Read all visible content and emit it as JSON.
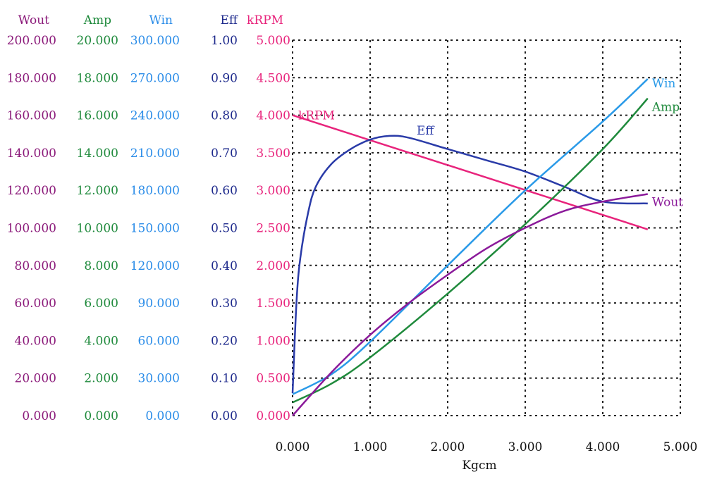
{
  "chart_data": {
    "type": "line",
    "xlabel": "Kgcm",
    "xlim": [
      0,
      5
    ],
    "x_ticks": [
      "0.000",
      "1.000",
      "2.000",
      "3.000",
      "4.000",
      "5.000"
    ],
    "grid": true,
    "y_axes": [
      {
        "name": "Wout",
        "color": "#8b1a7a",
        "ticks": [
          "0.000",
          "20.000",
          "40.000",
          "60.000",
          "80.000",
          "100.000",
          "120.000",
          "140.000",
          "160.000",
          "180.000",
          "200.000"
        ]
      },
      {
        "name": "Amp",
        "color": "#1f8a3c",
        "ticks": [
          "0.000",
          "2.000",
          "4.000",
          "6.000",
          "8.000",
          "10.000",
          "12.000",
          "14.000",
          "16.000",
          "18.000",
          "20.000"
        ]
      },
      {
        "name": "Win",
        "color": "#2a8ce8",
        "ticks": [
          "0.000",
          "30.000",
          "60.000",
          "90.000",
          "120.000",
          "150.000",
          "180.000",
          "210.000",
          "240.000",
          "270.000",
          "300.000"
        ]
      },
      {
        "name": "Eff",
        "color": "#1e2a8c",
        "ticks": [
          "0.00",
          "0.10",
          "0.20",
          "0.30",
          "0.40",
          "0.50",
          "0.60",
          "0.70",
          "0.80",
          "0.90",
          "1.00"
        ]
      },
      {
        "name": "kRPM",
        "color": "#e8247c",
        "ticks": [
          "0.000",
          "0.500",
          "1.000",
          "1.500",
          "2.000",
          "2.500",
          "3.000",
          "3.500",
          "4.000",
          "4.500",
          "5.000"
        ]
      }
    ],
    "series": [
      {
        "name": "kRPM",
        "label": "kRPM",
        "color": "#e8247c",
        "x": [
          0,
          4.58
        ],
        "y": [
          4.0,
          2.48
        ]
      },
      {
        "name": "Eff",
        "label": "Eff",
        "color": "#2a3ba8",
        "x": [
          0,
          0.05,
          0.1,
          0.2,
          0.3,
          0.5,
          0.75,
          1.0,
          1.25,
          1.5,
          2.0,
          2.5,
          3.0,
          3.5,
          4.0,
          4.58
        ],
        "y": [
          0.06,
          0.3,
          0.42,
          0.54,
          0.61,
          0.67,
          0.71,
          0.735,
          0.745,
          0.74,
          0.71,
          0.68,
          0.65,
          0.61,
          0.57,
          0.565
        ]
      },
      {
        "name": "Amp",
        "label": "Amp",
        "color": "#1f8a3c",
        "x": [
          0,
          0.5,
          1.0,
          2.0,
          3.0,
          4.0,
          4.58
        ],
        "y": [
          0.7,
          1.7,
          3.1,
          6.5,
          10.2,
          14.2,
          16.9
        ]
      },
      {
        "name": "Win",
        "label": "Win",
        "color": "#2a9ae8",
        "x": [
          0,
          0.5,
          1.0,
          2.0,
          3.0,
          4.0,
          4.58
        ],
        "y": [
          17,
          33,
          59,
          120,
          180,
          235,
          269
        ]
      },
      {
        "name": "Wout",
        "label": "Wout",
        "color": "#8b1a9a",
        "x": [
          0,
          0.5,
          1.0,
          1.5,
          2.0,
          2.5,
          3.0,
          3.5,
          4.0,
          4.58
        ],
        "y": [
          0,
          23,
          43,
          60,
          75,
          89,
          100,
          109,
          114,
          118
        ]
      }
    ]
  }
}
